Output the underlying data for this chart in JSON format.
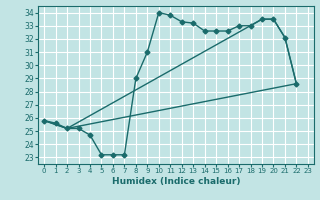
{
  "xlabel": "Humidex (Indice chaleur)",
  "xlim": [
    -0.5,
    23.5
  ],
  "ylim": [
    22.5,
    34.5
  ],
  "yticks": [
    23,
    24,
    25,
    26,
    27,
    28,
    29,
    30,
    31,
    32,
    33,
    34
  ],
  "xticks": [
    0,
    1,
    2,
    3,
    4,
    5,
    6,
    7,
    8,
    9,
    10,
    11,
    12,
    13,
    14,
    15,
    16,
    17,
    18,
    19,
    20,
    21,
    22,
    23
  ],
  "bg_color": "#c2e4e4",
  "grid_color": "#ffffff",
  "line_color": "#1a6b6b",
  "line1_x": [
    0,
    1,
    2,
    3,
    4,
    5,
    6,
    7,
    8,
    9,
    10,
    11,
    12,
    13,
    14,
    15,
    16,
    17,
    18,
    19,
    20,
    21,
    22
  ],
  "line1_y": [
    25.8,
    25.6,
    25.2,
    25.2,
    24.7,
    23.2,
    23.2,
    23.2,
    29.0,
    31.0,
    34.0,
    33.8,
    33.3,
    33.2,
    32.6,
    32.6,
    32.6,
    33.0,
    33.0,
    33.5,
    33.5,
    32.1,
    28.6
  ],
  "line2_x": [
    0,
    2,
    22
  ],
  "line2_y": [
    25.8,
    25.2,
    28.6
  ],
  "line3_x": [
    0,
    2,
    19,
    20,
    21,
    22
  ],
  "line3_y": [
    25.8,
    25.2,
    33.5,
    33.5,
    32.1,
    28.6
  ],
  "marker": "D",
  "markersize": 2.5,
  "linewidth": 1.0,
  "tick_fontsize": 5.5,
  "xlabel_fontsize": 6.5
}
